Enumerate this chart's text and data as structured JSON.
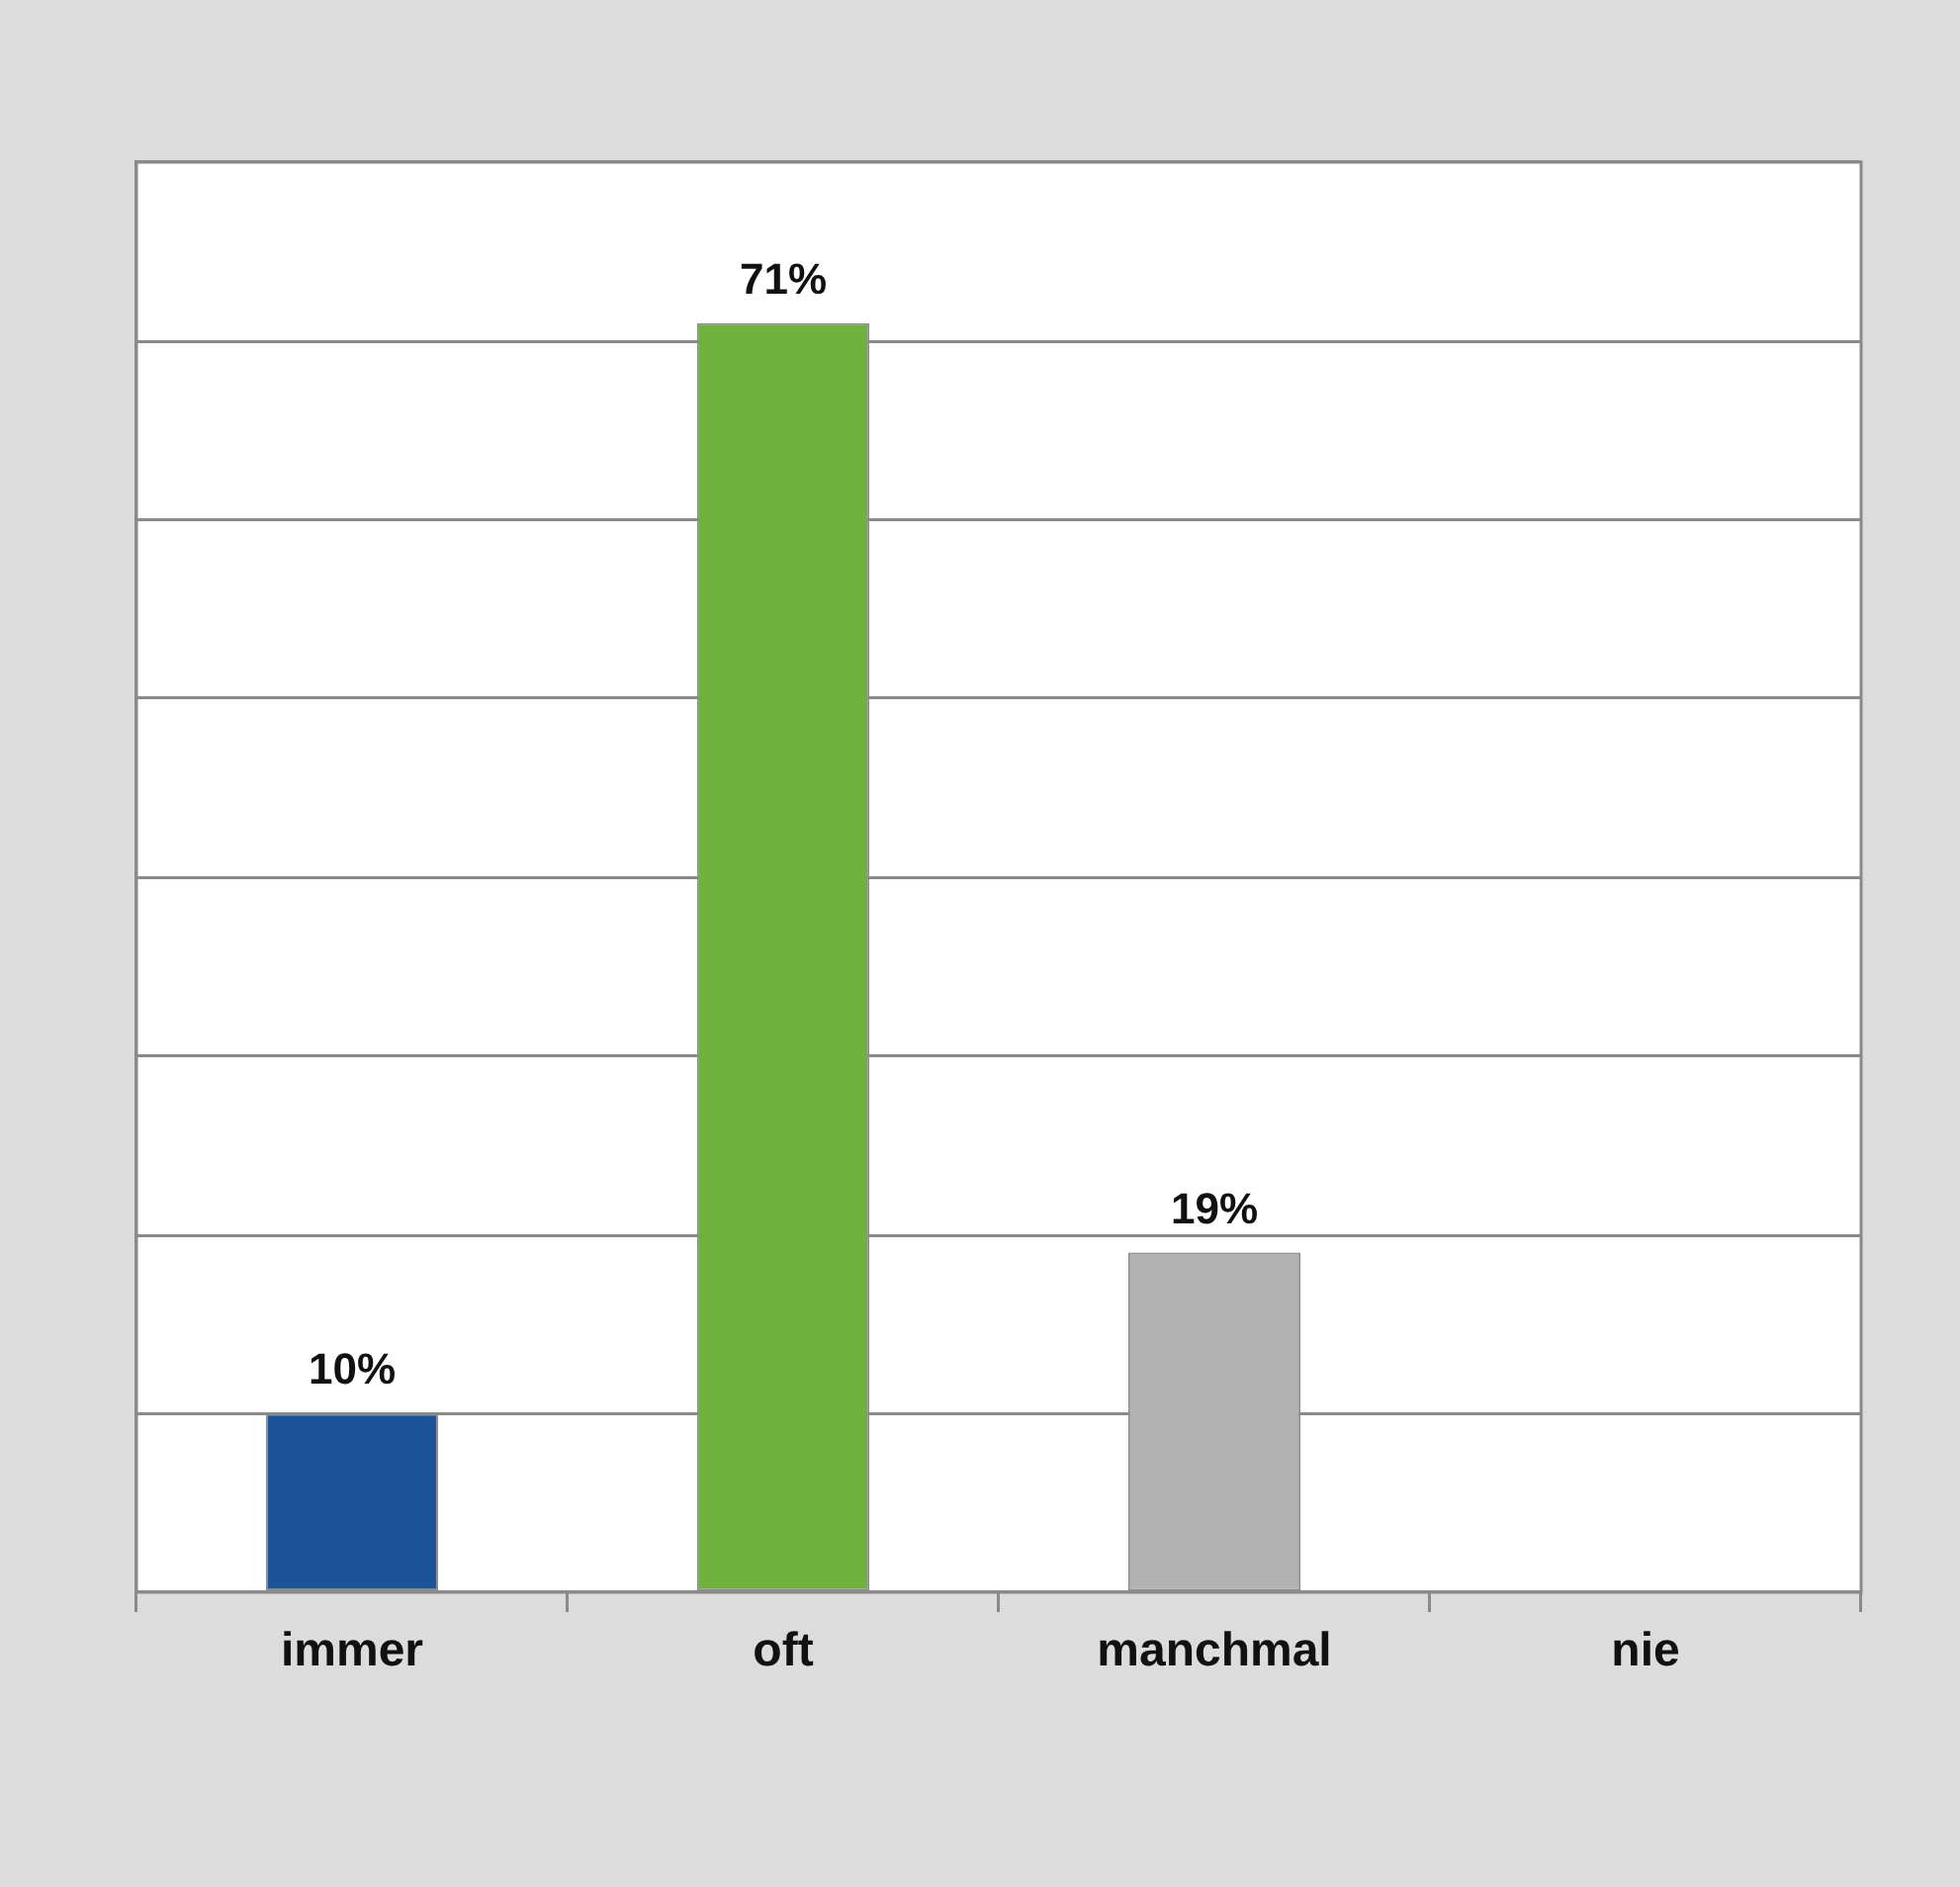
{
  "chart_data": {
    "type": "bar",
    "categories": [
      "immer",
      "oft",
      "manchmal",
      "nie"
    ],
    "values": [
      10,
      71,
      19,
      0
    ],
    "colors": [
      "#1b5597",
      "#6fb23d",
      "#b2b2b2",
      "#b2b2b2"
    ],
    "value_labels": [
      "10%",
      "71%",
      "19%",
      null
    ],
    "ylim": [
      0,
      80
    ],
    "yticks": [
      {
        "value": 0,
        "label": null
      },
      {
        "value": 10,
        "label": null
      },
      {
        "value": 20,
        "label": null
      },
      {
        "value": 30,
        "label": null
      },
      {
        "value": 40,
        "label": null
      },
      {
        "value": 50,
        "label": null
      },
      {
        "value": 60,
        "label": null
      },
      {
        "value": 70,
        "label": null
      },
      {
        "value": 80,
        "label": null
      }
    ],
    "grid": "y",
    "tick_labels": "x"
  }
}
